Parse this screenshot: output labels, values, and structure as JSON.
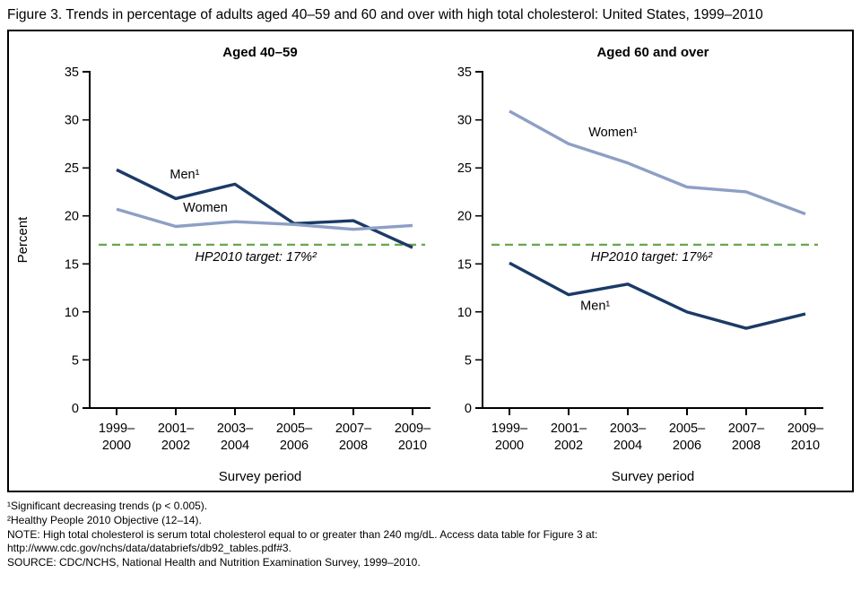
{
  "figure_title": "Figure 3. Trends in percentage of adults aged 40–59 and 60 and over with high total cholesterol: United States, 1999–2010",
  "colors": {
    "men": "#1b3a66",
    "women": "#8e9fc5",
    "target": "#69a74e",
    "axis": "#000000"
  },
  "chart_data": [
    {
      "type": "line",
      "title": "Aged 40–59",
      "xlabel": "Survey period",
      "ylabel": "Percent",
      "ylim": [
        0,
        35
      ],
      "ytick_step": 5,
      "categories": [
        "1999–2000",
        "2001–2002",
        "2003–2004",
        "2005–2006",
        "2007–2008",
        "2009–2010"
      ],
      "categories_line1": [
        "1999–",
        "2001–",
        "2003–",
        "2005–",
        "2007–",
        " 2009–"
      ],
      "categories_line2": [
        "2000",
        "2002",
        "2004",
        "2006",
        "2008",
        "2010"
      ],
      "series": [
        {
          "name": "Men¹",
          "color_key": "men",
          "values": [
            24.8,
            21.8,
            23.3,
            19.2,
            19.5,
            16.7
          ],
          "label": {
            "text": "Men¹",
            "x": 1.15,
            "y": 23.9
          }
        },
        {
          "name": "Women",
          "color_key": "women",
          "values": [
            20.7,
            18.9,
            19.4,
            19.1,
            18.6,
            19.0
          ],
          "label": {
            "text": "Women",
            "x": 1.5,
            "y": 20.45
          }
        }
      ],
      "target": {
        "value": 17,
        "label": "HP2010 target: 17%²",
        "label_x": 2.35,
        "label_y": 15.3
      }
    },
    {
      "type": "line",
      "title": "Aged 60 and over",
      "xlabel": "Survey period",
      "ylabel": "",
      "ylim": [
        0,
        35
      ],
      "ytick_step": 5,
      "categories": [
        "1999–2000",
        "2001–2002",
        "2003–2004",
        "2005–2006",
        "2007–2008",
        "2009–2010"
      ],
      "categories_line1": [
        "1999–",
        "2001–",
        "2003–",
        "2005–",
        "2007–",
        "2009–"
      ],
      "categories_line2": [
        "2000",
        "2002",
        "2004",
        "2006",
        "2008",
        "2010"
      ],
      "series": [
        {
          "name": "Women¹",
          "color_key": "women",
          "values": [
            30.9,
            27.5,
            25.5,
            23.0,
            22.5,
            20.2
          ],
          "label": {
            "text": "Women¹",
            "x": 1.75,
            "y": 28.3
          }
        },
        {
          "name": "Men¹",
          "color_key": "men",
          "values": [
            15.1,
            11.8,
            12.9,
            10.0,
            8.3,
            9.8
          ],
          "label": {
            "text": "Men¹",
            "x": 1.45,
            "y": 10.2
          }
        }
      ],
      "target": {
        "value": 17,
        "label": "HP2010 target: 17%²",
        "label_x": 2.4,
        "label_y": 15.3
      }
    }
  ],
  "footnotes": [
    "¹Significant decreasing trends (p < 0.005).",
    "²Healthy People 2010 Objective (12–14).",
    "NOTE: High total cholesterol is serum total cholesterol equal to or greater than 240 mg/dL. Access data table for Figure 3 at: http://www.cdc.gov/nchs/data/databriefs/db92_tables.pdf#3.",
    "SOURCE: CDC/NCHS, National Health and Nutrition Examination Survey, 1999–2010."
  ]
}
